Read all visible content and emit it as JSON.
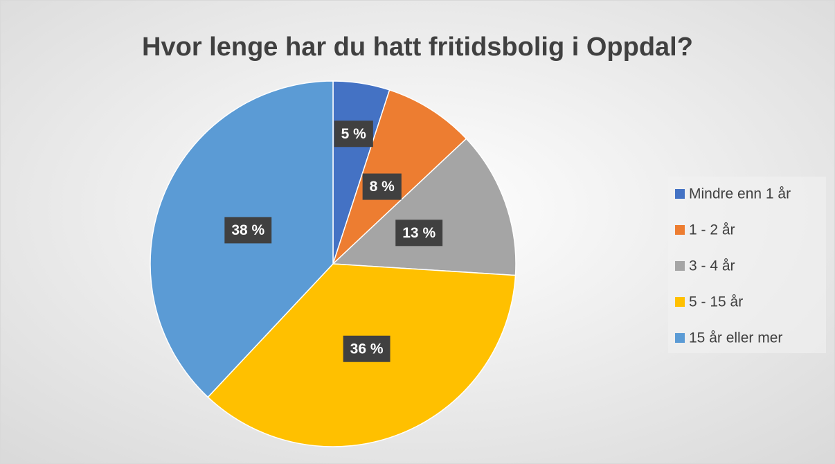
{
  "chart_data": {
    "type": "pie",
    "title": "Hvor lenge har du hatt fritidsbolig i Oppdal?",
    "categories": [
      "Mindre enn 1 år",
      "1 - 2 år",
      "3 - 4 år",
      "5 - 15 år",
      "15 år eller mer"
    ],
    "values": [
      5,
      8,
      13,
      36,
      38
    ],
    "value_labels": [
      "5 %",
      "8 %",
      "13 %",
      "36 %",
      "38 %"
    ],
    "colors": [
      "#4472c4",
      "#ed7d31",
      "#a5a5a5",
      "#ffc000",
      "#5b9bd5"
    ],
    "legend": "right"
  }
}
